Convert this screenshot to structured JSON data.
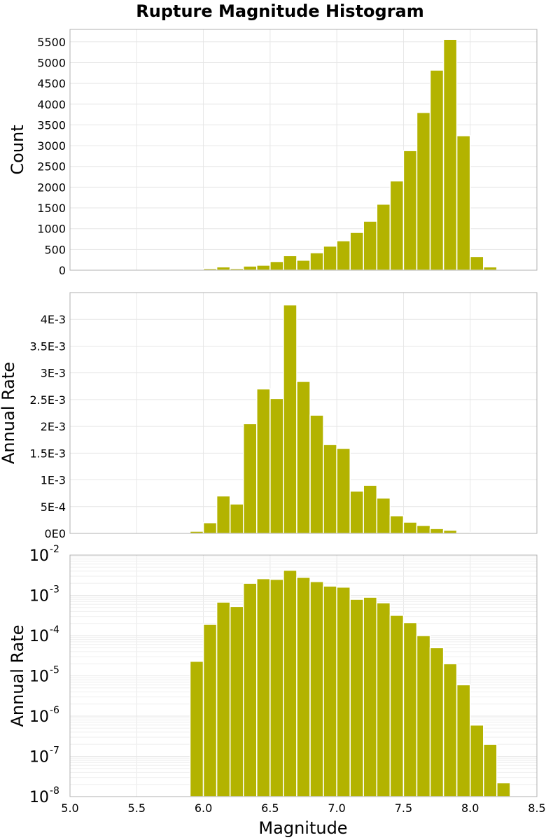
{
  "figure": {
    "title": "Rupture Magnitude Histogram",
    "xlabel": "Magnitude"
  },
  "chart_data": [
    {
      "type": "bar",
      "ylabel": "Count",
      "yscale": "linear",
      "xlim": [
        5.0,
        8.5
      ],
      "ylim": [
        0,
        5800
      ],
      "bin_width": 0.1,
      "bar_color": "#b3b300",
      "grid": true,
      "x_ticks": [
        "5.0",
        "5.5",
        "6.0",
        "6.5",
        "7.0",
        "7.5",
        "8.0",
        "8.5"
      ],
      "x_tick_values": [
        5.0,
        5.5,
        6.0,
        6.5,
        7.0,
        7.5,
        8.0,
        8.5
      ],
      "y_ticks": [
        "0",
        "500",
        "1000",
        "1500",
        "2000",
        "2500",
        "3000",
        "3500",
        "4000",
        "4500",
        "5000",
        "5500"
      ],
      "y_tick_values": [
        0,
        500,
        1000,
        1500,
        2000,
        2500,
        3000,
        3500,
        4000,
        4500,
        5000,
        5500
      ],
      "x": [
        5.95,
        6.05,
        6.15,
        6.25,
        6.35,
        6.45,
        6.55,
        6.65,
        6.75,
        6.85,
        6.95,
        7.05,
        7.15,
        7.25,
        7.35,
        7.45,
        7.55,
        7.65,
        7.75,
        7.85,
        7.95,
        8.05,
        8.15
      ],
      "values": [
        10,
        40,
        80,
        40,
        100,
        120,
        210,
        350,
        240,
        420,
        580,
        710,
        910,
        1180,
        1590,
        2150,
        2880,
        3800,
        4820,
        5560,
        3240,
        330,
        80
      ]
    },
    {
      "type": "bar",
      "ylabel": "Annual Rate",
      "yscale": "linear",
      "xlim": [
        5.0,
        8.5
      ],
      "ylim": [
        0,
        0.0045
      ],
      "bin_width": 0.1,
      "bar_color": "#b3b300",
      "grid": true,
      "y_ticks": [
        "0E0",
        "5E-4",
        "1E-3",
        "1.5E-3",
        "2E-3",
        "2.5E-3",
        "3E-3",
        "3.5E-3",
        "4E-3"
      ],
      "y_tick_values": [
        0,
        0.0005,
        0.001,
        0.0015,
        0.002,
        0.0025,
        0.003,
        0.0035,
        0.004
      ],
      "x": [
        5.95,
        6.05,
        6.15,
        6.25,
        6.35,
        6.45,
        6.55,
        6.65,
        6.75,
        6.85,
        6.95,
        7.05,
        7.15,
        7.25,
        7.35,
        7.45,
        7.55,
        7.65,
        7.75,
        7.85,
        7.95,
        8.05,
        8.15
      ],
      "values": [
        4e-05,
        0.0002,
        0.0007,
        0.00055,
        0.00205,
        0.0027,
        0.00252,
        0.00427,
        0.00284,
        0.00221,
        0.00166,
        0.00159,
        0.00079,
        0.0009,
        0.00066,
        0.00033,
        0.00021,
        0.00015,
        9e-05,
        6e-05,
        2e-05,
        1e-06,
        3e-07
      ]
    },
    {
      "type": "bar",
      "ylabel": "Annual Rate",
      "yscale": "log",
      "xlim": [
        5.0,
        8.5
      ],
      "ylim": [
        1e-08,
        0.01
      ],
      "bin_width": 0.1,
      "bar_color": "#b3b300",
      "grid": true,
      "y_ticks": [
        {
          "base": "10",
          "exp": "-8",
          "value": 1e-08
        },
        {
          "base": "10",
          "exp": "-7",
          "value": 1e-07
        },
        {
          "base": "10",
          "exp": "-6",
          "value": 1e-06
        },
        {
          "base": "10",
          "exp": "-5",
          "value": 1e-05
        },
        {
          "base": "10",
          "exp": "-4",
          "value": 0.0001
        },
        {
          "base": "10",
          "exp": "-3",
          "value": 0.001
        },
        {
          "base": "10",
          "exp": "-2",
          "value": 0.01
        }
      ],
      "x": [
        5.95,
        6.05,
        6.15,
        6.25,
        6.35,
        6.45,
        6.55,
        6.65,
        6.75,
        6.85,
        6.95,
        7.05,
        7.15,
        7.25,
        7.35,
        7.45,
        7.55,
        7.65,
        7.75,
        7.85,
        7.95,
        8.05,
        8.15,
        8.25
      ],
      "values": [
        2.3e-05,
        0.00019,
        0.00068,
        0.00053,
        0.002,
        0.0026,
        0.0025,
        0.0042,
        0.0028,
        0.0022,
        0.0017,
        0.0016,
        0.0008,
        0.0009,
        0.00065,
        0.00032,
        0.00021,
        0.0001,
        5e-05,
        2e-05,
        6e-06,
        6e-07,
        2e-07,
        2.2e-08
      ]
    }
  ]
}
